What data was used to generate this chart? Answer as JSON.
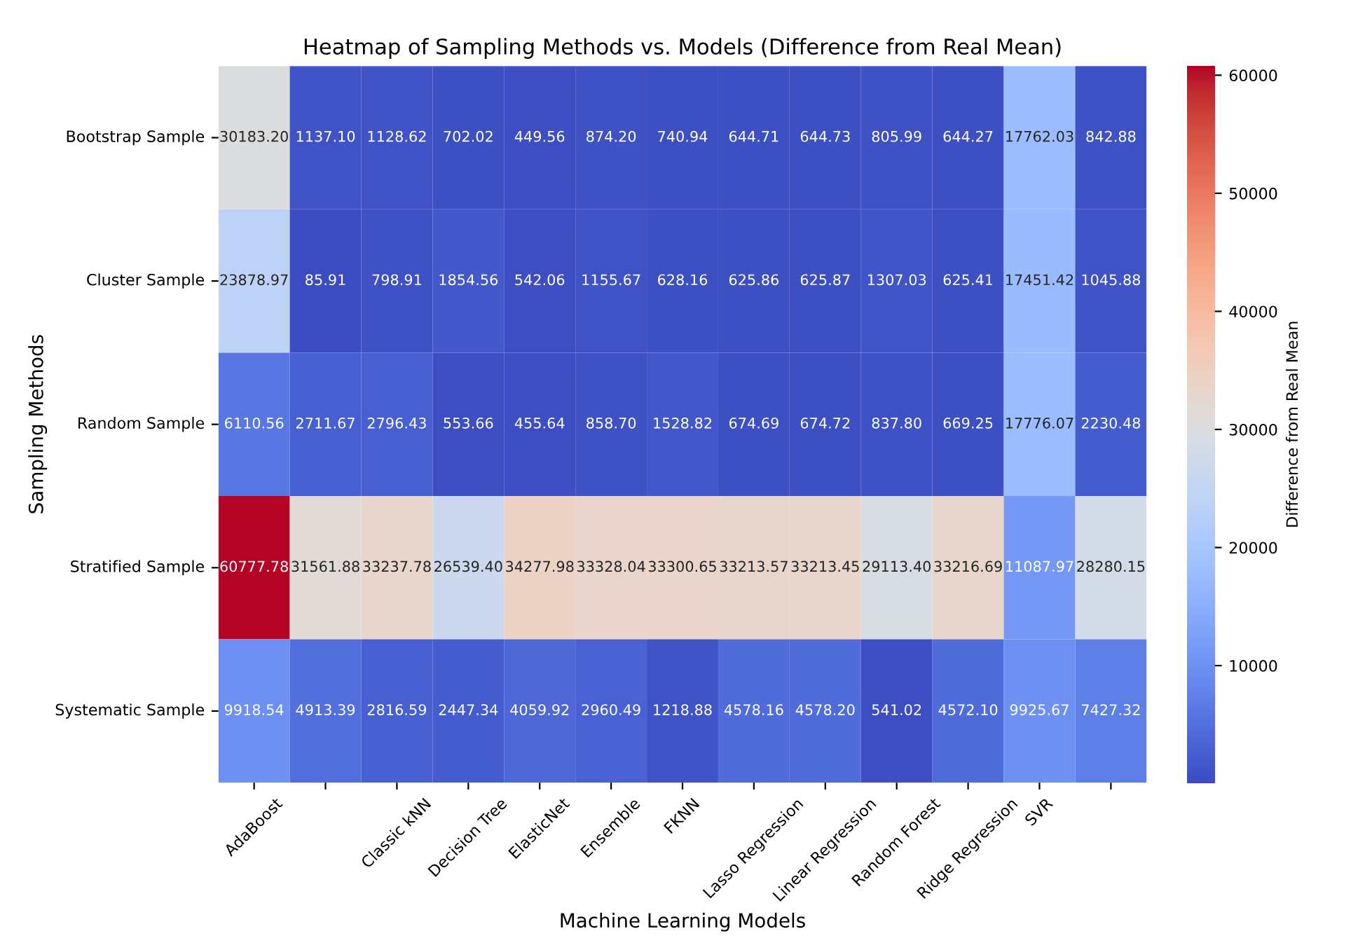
{
  "chart_data": {
    "type": "heatmap",
    "title": "Heatmap of Sampling Methods vs. Models (Difference from Real Mean)",
    "xlabel": "Machine Learning Models",
    "ylabel": "Sampling Methods",
    "clabel": "Difference from Real Mean",
    "categories": [
      "AdaBoost",
      null,
      "Classic kNN",
      "Decision Tree",
      "ElasticNet",
      "Ensemble",
      "FKNN",
      "Lasso Regression",
      "Linear Regression",
      "Random Forest",
      "Ridge Regression",
      "SVR",
      null
    ],
    "y_categories": [
      "Bootstrap Sample",
      "Cluster Sample",
      "Random Sample",
      "Stratified Sample",
      "Systematic Sample"
    ],
    "cells": [
      [
        30183.2,
        1137.1,
        1128.62,
        702.02,
        449.56,
        874.2,
        740.94,
        644.71,
        644.73,
        805.99,
        644.27,
        17762.03,
        842.88
      ],
      [
        23878.97,
        85.91,
        798.91,
        1854.56,
        542.06,
        1155.67,
        628.16,
        625.86,
        625.87,
        1307.03,
        625.41,
        17451.42,
        1045.88
      ],
      [
        6110.56,
        2711.67,
        2796.43,
        553.66,
        455.64,
        858.7,
        1528.82,
        674.69,
        674.72,
        837.8,
        669.25,
        17776.07,
        2230.48
      ],
      [
        60777.78,
        31561.88,
        33237.78,
        26539.4,
        34277.98,
        33328.04,
        33300.65,
        33213.57,
        33213.45,
        29113.4,
        33216.69,
        11087.97,
        28280.15
      ],
      [
        9918.54,
        4913.39,
        2816.59,
        2447.34,
        4059.92,
        2960.49,
        1218.88,
        4578.16,
        4578.2,
        541.02,
        4572.1,
        9925.67,
        7427.32
      ]
    ],
    "cell_labels": [
      [
        "30183.20",
        "1137.10",
        "1128.62",
        "702.02",
        "449.56",
        "874.20",
        "740.94",
        "644.71",
        "644.73",
        "805.99",
        "644.27",
        "17762.03",
        "842.88"
      ],
      [
        "23878.97",
        "85.91",
        "798.91",
        "1854.56",
        "542.06",
        "1155.67",
        "628.16",
        "625.86",
        "625.87",
        "1307.03",
        "625.41",
        "17451.42",
        "1045.88"
      ],
      [
        "6110.56",
        "2711.67",
        "2796.43",
        "553.66",
        "455.64",
        "858.70",
        "1528.82",
        "674.69",
        "674.72",
        "837.80",
        "669.25",
        "17776.07",
        "2230.48"
      ],
      [
        "60777.78",
        "31561.88",
        "33237.78",
        "26539.40",
        "34277.98",
        "33328.04",
        "33300.65",
        "33213.57",
        "33213.45",
        "29113.40",
        "33216.69",
        "11087.97",
        "28280.15"
      ],
      [
        "9918.54",
        "4913.39",
        "2816.59",
        "2447.34",
        "4059.92",
        "2960.49",
        "1218.88",
        "4578.16",
        "4578.20",
        "541.02",
        "4572.10",
        "9925.67",
        "7427.32"
      ]
    ],
    "clim": [
      85.91,
      60777.78
    ],
    "cticks": [
      10000,
      20000,
      30000,
      40000,
      50000,
      60000
    ]
  }
}
